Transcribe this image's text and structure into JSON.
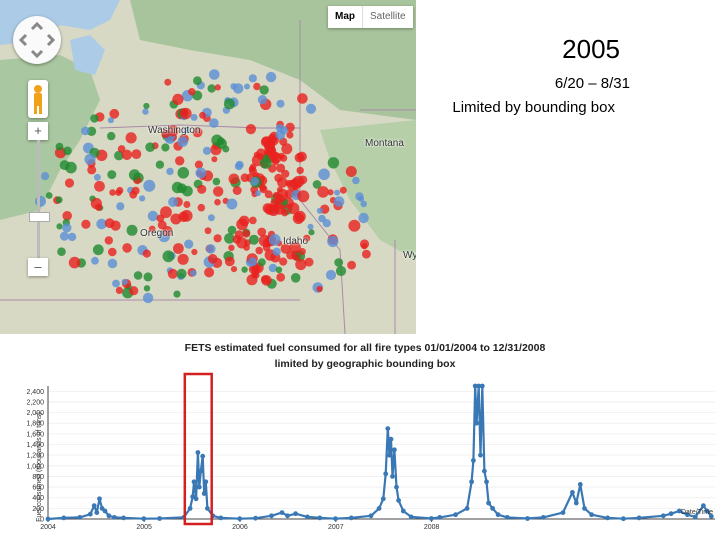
{
  "slide": {
    "year": "2005",
    "date_range": "6/20 – 8/31",
    "note": "Limited by bounding box"
  },
  "map": {
    "map_type_buttons": [
      "Map",
      "Satellite"
    ],
    "active_map_type": "Map",
    "zoom_in_symbol": "+",
    "zoom_out_symbol": "–",
    "labels": [
      "Washington",
      "Montana",
      "Oregon",
      "Idaho",
      "Wy"
    ],
    "marker_colors": {
      "red": "#e8201e",
      "green": "#1f8a2e",
      "blue": "#5b8fd6"
    },
    "icons": [
      "pan-control-icon",
      "pegman-icon"
    ]
  },
  "chart_data": {
    "type": "line",
    "title": "FETS estimated fuel consumed for all fire types 01/01/2004 to 12/31/2008",
    "subtitle": "limited by geographic bounding box",
    "ylabel": "Fuel consumed (thousands of tons)",
    "xlabel": "Date/Time",
    "yticks": [
      "0",
      "200",
      "400",
      "600",
      "800",
      "1,000",
      "1,200",
      "1,400",
      "1,600",
      "1,800",
      "2,000",
      "2,200",
      "2,400"
    ],
    "xticks": [
      "2004",
      "2005",
      "2006",
      "2007",
      "2008"
    ],
    "ylim": [
      0,
      2500
    ],
    "series_color": "#3a78b5",
    "highlight_color": "#d42020",
    "highlight_range": [
      "2005-06-20",
      "2005-08-31"
    ],
    "series": [
      {
        "values": [
          [
            "2004-01-01",
            0
          ],
          [
            "2004-03-01",
            20
          ],
          [
            "2004-05-01",
            30
          ],
          [
            "2004-06-10",
            90
          ],
          [
            "2004-06-25",
            250
          ],
          [
            "2004-07-05",
            120
          ],
          [
            "2004-07-15",
            380
          ],
          [
            "2004-07-25",
            200
          ],
          [
            "2004-08-05",
            150
          ],
          [
            "2004-08-20",
            60
          ],
          [
            "2004-09-10",
            30
          ],
          [
            "2004-10-15",
            20
          ],
          [
            "2004-12-31",
            5
          ],
          [
            "2005-03-01",
            10
          ],
          [
            "2005-06-01",
            30
          ],
          [
            "2005-06-25",
            200
          ],
          [
            "2005-07-05",
            420
          ],
          [
            "2005-07-10",
            700
          ],
          [
            "2005-07-18",
            380
          ],
          [
            "2005-07-25",
            1250
          ],
          [
            "2005-07-30",
            600
          ],
          [
            "2005-08-05",
            900
          ],
          [
            "2005-08-12",
            1180
          ],
          [
            "2005-08-18",
            480
          ],
          [
            "2005-08-24",
            700
          ],
          [
            "2005-08-30",
            200
          ],
          [
            "2005-09-20",
            60
          ],
          [
            "2005-10-20",
            20
          ],
          [
            "2005-12-31",
            5
          ],
          [
            "2006-03-01",
            15
          ],
          [
            "2006-05-01",
            60
          ],
          [
            "2006-06-10",
            120
          ],
          [
            "2006-07-01",
            60
          ],
          [
            "2006-08-01",
            100
          ],
          [
            "2006-09-15",
            40
          ],
          [
            "2006-11-01",
            20
          ],
          [
            "2006-12-31",
            5
          ],
          [
            "2007-03-01",
            20
          ],
          [
            "2007-05-15",
            60
          ],
          [
            "2007-06-15",
            200
          ],
          [
            "2007-07-01",
            380
          ],
          [
            "2007-07-10",
            850
          ],
          [
            "2007-07-18",
            1700
          ],
          [
            "2007-07-24",
            1200
          ],
          [
            "2007-07-30",
            1500
          ],
          [
            "2007-08-05",
            800
          ],
          [
            "2007-08-12",
            1300
          ],
          [
            "2007-08-20",
            600
          ],
          [
            "2007-08-28",
            350
          ],
          [
            "2007-09-15",
            150
          ],
          [
            "2007-10-15",
            40
          ],
          [
            "2007-12-31",
            10
          ],
          [
            "2008-02-01",
            30
          ],
          [
            "2008-04-01",
            80
          ],
          [
            "2008-05-15",
            200
          ],
          [
            "2008-06-01",
            700
          ],
          [
            "2008-06-08",
            1100
          ],
          [
            "2008-06-15",
            2500
          ],
          [
            "2008-06-20",
            1800
          ],
          [
            "2008-06-28",
            2500
          ],
          [
            "2008-07-05",
            1200
          ],
          [
            "2008-07-12",
            2500
          ],
          [
            "2008-07-20",
            900
          ],
          [
            "2008-07-28",
            700
          ],
          [
            "2008-08-05",
            300
          ],
          [
            "2008-08-20",
            200
          ],
          [
            "2008-09-10",
            80
          ],
          [
            "2008-10-15",
            30
          ],
          [
            "2008-12-31",
            10
          ],
          [
            "2009-03-01",
            30
          ],
          [
            "2009-05-15",
            120
          ],
          [
            "2009-06-20",
            500
          ],
          [
            "2009-07-05",
            300
          ],
          [
            "2009-07-20",
            650
          ],
          [
            "2009-08-05",
            200
          ],
          [
            "2009-09-01",
            80
          ],
          [
            "2009-11-01",
            20
          ],
          [
            "2009-12-31",
            5
          ],
          [
            "2010-03-01",
            20
          ],
          [
            "2010-06-01",
            60
          ],
          [
            "2010-07-01",
            100
          ],
          [
            "2010-08-01",
            150
          ],
          [
            "2010-09-01",
            80
          ],
          [
            "2010-10-01",
            40
          ],
          [
            "2010-11-01",
            250
          ],
          [
            "2010-11-15",
            150
          ],
          [
            "2010-12-01",
            50
          ]
        ]
      }
    ]
  }
}
